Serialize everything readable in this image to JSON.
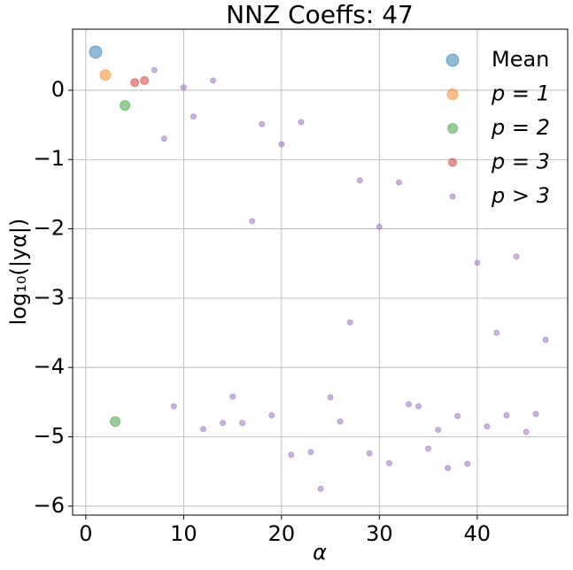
{
  "chart_data": {
    "type": "scatter",
    "title": "NNZ Coeffs: 47",
    "xlabel": "α",
    "ylabel": "log₁₀(|yα|)",
    "xlim": [
      -1.35,
      49.25
    ],
    "ylim": [
      -6.13,
      0.88
    ],
    "xticks": [
      0,
      10,
      20,
      30,
      40
    ],
    "yticks": [
      {
        "value": -6,
        "label": "−6"
      },
      {
        "value": -5,
        "label": "−5"
      },
      {
        "value": -4,
        "label": "−4"
      },
      {
        "value": -3,
        "label": "−3"
      },
      {
        "value": -2,
        "label": "−2"
      },
      {
        "value": -1,
        "label": "−1"
      },
      0
    ],
    "grid": true,
    "legend": "upper right",
    "series": [
      {
        "name": "Mean",
        "color": "#1f77b4",
        "x": [
          1
        ],
        "values": [
          0.55
        ]
      },
      {
        "name": "p = 1",
        "color": "#ff7f0e",
        "x": [
          2
        ],
        "values": [
          0.22
        ]
      },
      {
        "name": "p = 2",
        "color": "#2ca02c",
        "x": [
          3,
          4
        ],
        "values": [
          -4.78,
          -0.22
        ]
      },
      {
        "name": "p = 3",
        "color": "#d62728",
        "x": [
          5,
          6
        ],
        "values": [
          0.11,
          0.14
        ]
      },
      {
        "name": "p > 3",
        "color": "#9467bd",
        "x": [
          7,
          8,
          9,
          10,
          11,
          12,
          13,
          14,
          15,
          16,
          17,
          18,
          19,
          20,
          21,
          22,
          23,
          24,
          25,
          26,
          27,
          28,
          29,
          30,
          31,
          32,
          33,
          34,
          35,
          36,
          37,
          38,
          39,
          40,
          41,
          42,
          43,
          44,
          45,
          46,
          47
        ],
        "values": [
          0.29,
          -0.7,
          -4.56,
          0.04,
          -0.38,
          -4.89,
          0.14,
          -4.8,
          -4.42,
          -4.8,
          -1.89,
          -0.49,
          -4.69,
          -0.78,
          -5.26,
          -0.46,
          -5.22,
          -5.75,
          -4.43,
          -4.78,
          -3.35,
          -1.3,
          -5.24,
          -1.97,
          -5.38,
          -1.33,
          -4.53,
          -4.56,
          -5.17,
          -4.9,
          -5.45,
          -4.7,
          -5.39,
          -2.49,
          -4.85,
          -3.5,
          -4.69,
          -2.4,
          -4.93,
          -4.67,
          -3.6
        ]
      }
    ]
  }
}
